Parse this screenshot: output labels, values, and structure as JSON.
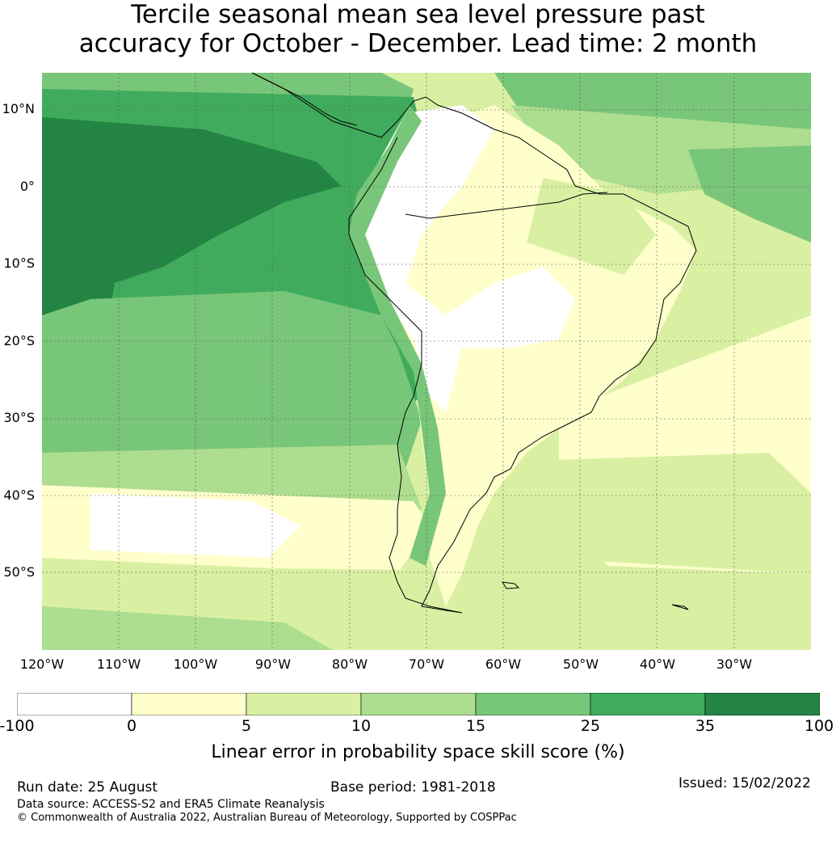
{
  "title_line1": "Tercile seasonal mean sea level pressure past",
  "title_line2": "accuracy for October - December. Lead time: 2 month",
  "lat_labels": [
    "10°N",
    "0°",
    "10°S",
    "20°S",
    "30°S",
    "40°S",
    "50°S"
  ],
  "lon_labels": [
    "120°W",
    "110°W",
    "100°W",
    "90°W",
    "80°W",
    "70°W",
    "60°W",
    "50°W",
    "40°W",
    "30°W"
  ],
  "colorbar": {
    "ticks": [
      "-100",
      "0",
      "5",
      "10",
      "15",
      "25",
      "35",
      "100"
    ],
    "colors": [
      "#ffffff",
      "#ffffcc",
      "#d9f0a3",
      "#addd8e",
      "#78c679",
      "#41ab5d",
      "#238443"
    ],
    "label": "Linear error in probability space skill score (%)"
  },
  "footer": {
    "run_date": "Run date: 25 August",
    "base_period": "Base period: 1981-2018",
    "issued": "Issued: 15/02/2022",
    "data_source": "Data source: ACCESS-S2 and ERA5 Climate Reanalysis",
    "copyright": "© Commonwealth of Australia 2022, Australian Bureau of Meteorology, Supported by COSPPac"
  }
}
